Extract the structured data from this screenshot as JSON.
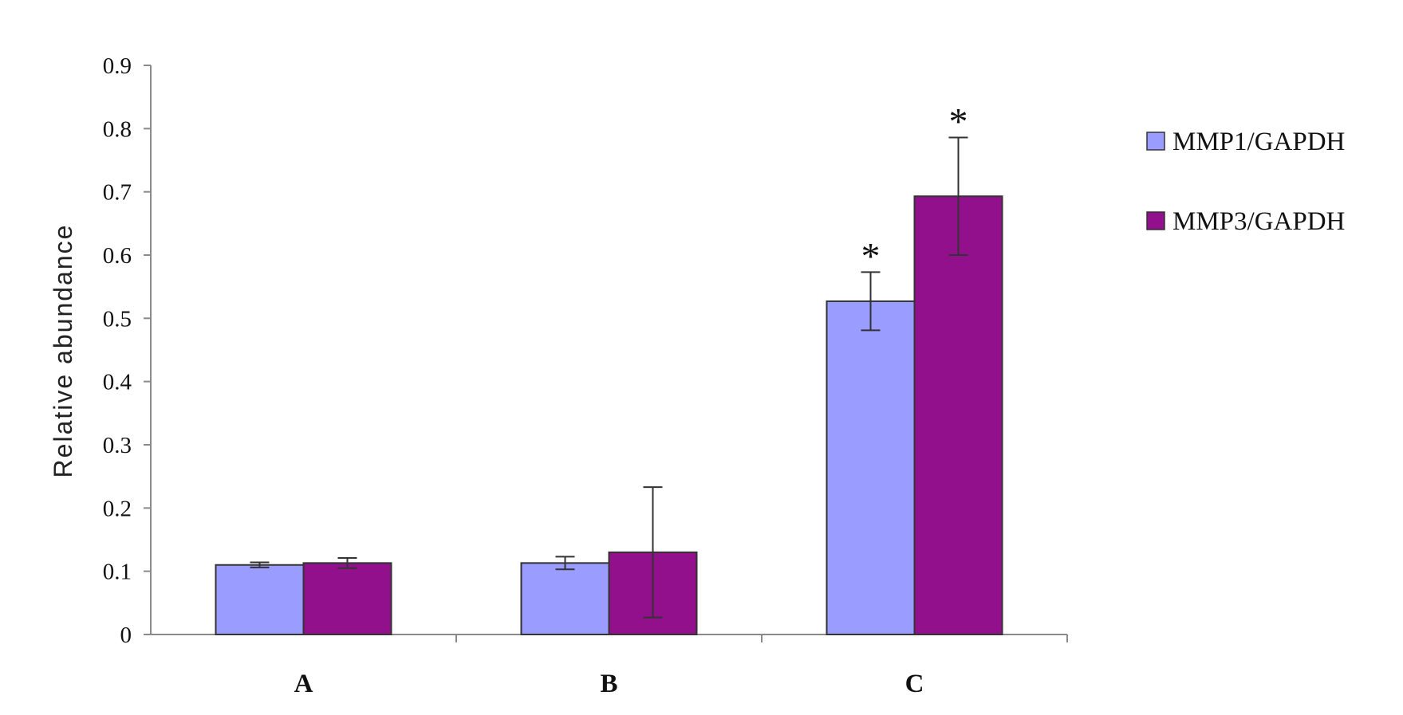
{
  "chart_data": {
    "type": "bar",
    "title": "",
    "xlabel": "",
    "ylabel": "Relative abundance",
    "ylim": [
      0,
      0.9
    ],
    "yticks": [
      "0",
      "0.1",
      "0.2",
      "0.3",
      "0.4",
      "0.5",
      "0.6",
      "0.7",
      "0.8",
      "0.9"
    ],
    "categories": [
      "A",
      "B",
      "C"
    ],
    "legend_position": "right",
    "grid": false,
    "series": [
      {
        "name": "MMP1/GAPDH",
        "color": "#9a9cff",
        "values": [
          0.11,
          0.113,
          0.527
        ],
        "errors": [
          0.004,
          0.01,
          0.046
        ],
        "markers": [
          "",
          "",
          "*"
        ]
      },
      {
        "name": "MMP3/GAPDH",
        "color": "#92108c",
        "values": [
          0.113,
          0.13,
          0.693
        ],
        "errors": [
          0.008,
          0.103,
          0.093
        ],
        "markers": [
          "",
          "",
          "*"
        ]
      }
    ]
  }
}
